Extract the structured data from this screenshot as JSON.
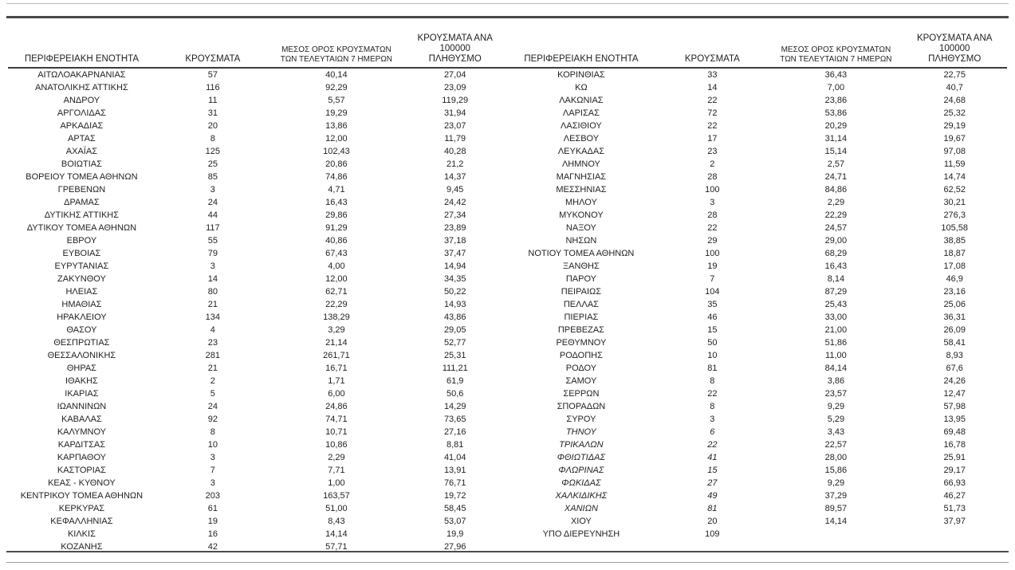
{
  "colors": {
    "background": "#ffffff",
    "text": "#1f1f1f",
    "rule_dark": "#4a4a4a",
    "rule_light": "#b8b8b8"
  },
  "columns": {
    "region": "ΠΕΡΙΦΕΡΕΙΑΚΗ ΕΝΟΤΗΤΑ",
    "cases": "ΚΡΟΥΣΜΑΤΑ",
    "avg7_line1": "ΜΕΣΟΣ ΟΡΟΣ ΚΡΟΥΣΜΑΤΩΝ",
    "avg7_line2": "ΤΩΝ ΤΕΛΕΥΤΑΙΩΝ 7 ΗΜΕΡΩΝ",
    "per100k_line1": "ΚΡΟΥΣΜΑΤΑ ΑΝΑ 100000",
    "per100k_line2": "ΠΛΗΘΥΣΜΟ"
  },
  "left_table": {
    "rows": [
      [
        "ΑΙΤΩΛΟΑΚΑΡΝΑΝΙΑΣ",
        "57",
        "40,14",
        "27,04"
      ],
      [
        "ΑΝΑΤΟΛΙΚΗΣ ΑΤΤΙΚΗΣ",
        "116",
        "92,29",
        "23,09"
      ],
      [
        "ΑΝΔΡΟΥ",
        "11",
        "5,57",
        "119,29"
      ],
      [
        "ΑΡΓΟΛΙΔΑΣ",
        "31",
        "19,29",
        "31,94"
      ],
      [
        "ΑΡΚΑΔΙΑΣ",
        "20",
        "13,86",
        "23,07"
      ],
      [
        "ΑΡΤΑΣ",
        "8",
        "12,00",
        "11,79"
      ],
      [
        "ΑΧΑΪΑΣ",
        "125",
        "102,43",
        "40,28"
      ],
      [
        "ΒΟΙΩΤΙΑΣ",
        "25",
        "20,86",
        "21,2"
      ],
      [
        "ΒΟΡΕΙΟΥ ΤΟΜΕΑ ΑΘΗΝΩΝ",
        "85",
        "74,86",
        "14,37"
      ],
      [
        "ΓΡΕΒΕΝΩΝ",
        "3",
        "4,71",
        "9,45"
      ],
      [
        "ΔΡΑΜΑΣ",
        "24",
        "16,43",
        "24,42"
      ],
      [
        "ΔΥΤΙΚΗΣ ΑΤΤΙΚΗΣ",
        "44",
        "29,86",
        "27,34"
      ],
      [
        "ΔΥΤΙΚΟΥ ΤΟΜΕΑ ΑΘΗΝΩΝ",
        "117",
        "91,29",
        "23,89"
      ],
      [
        "ΕΒΡΟΥ",
        "55",
        "40,86",
        "37,18"
      ],
      [
        "ΕΥΒΟΙΑΣ",
        "79",
        "67,43",
        "37,47"
      ],
      [
        "ΕΥΡΥΤΑΝΙΑΣ",
        "3",
        "4,00",
        "14,94"
      ],
      [
        "ΖΑΚΥΝΘΟΥ",
        "14",
        "12,00",
        "34,35"
      ],
      [
        "ΗΛΕΙΑΣ",
        "80",
        "62,71",
        "50,22"
      ],
      [
        "ΗΜΑΘΙΑΣ",
        "21",
        "22,29",
        "14,93"
      ],
      [
        "ΗΡΑΚΛΕΙΟΥ",
        "134",
        "138,29",
        "43,86"
      ],
      [
        "ΘΑΣΟΥ",
        "4",
        "3,29",
        "29,05"
      ],
      [
        "ΘΕΣΠΡΩΤΙΑΣ",
        "23",
        "21,14",
        "52,77"
      ],
      [
        "ΘΕΣΣΑΛΟΝΙΚΗΣ",
        "281",
        "261,71",
        "25,31"
      ],
      [
        "ΘΗΡΑΣ",
        "21",
        "16,71",
        "111,21"
      ],
      [
        "ΙΘΑΚΗΣ",
        "2",
        "1,71",
        "61,9"
      ],
      [
        "ΙΚΑΡΙΑΣ",
        "5",
        "6,00",
        "50,6"
      ],
      [
        "ΙΩΑΝΝΙΝΩΝ",
        "24",
        "24,86",
        "14,29"
      ],
      [
        "ΚΑΒΑΛΑΣ",
        "92",
        "74,71",
        "73,65"
      ],
      [
        "ΚΑΛΥΜΝΟΥ",
        "8",
        "10,71",
        "27,16"
      ],
      [
        "ΚΑΡΔΙΤΣΑΣ",
        "10",
        "10,86",
        "8,81"
      ],
      [
        "ΚΑΡΠΑΘΟΥ",
        "3",
        "2,29",
        "41,04"
      ],
      [
        "ΚΑΣΤΟΡΙΑΣ",
        "7",
        "7,71",
        "13,91"
      ],
      [
        "ΚΕΑΣ - ΚΥΘΝΟΥ",
        "3",
        "1,00",
        "76,71"
      ],
      [
        "ΚΕΝΤΡΙΚΟΥ ΤΟΜΕΑ ΑΘΗΝΩΝ",
        "203",
        "163,57",
        "19,72"
      ],
      [
        "ΚΕΡΚΥΡΑΣ",
        "61",
        "51,00",
        "58,45"
      ],
      [
        "ΚΕΦΑΛΛΗΝΙΑΣ",
        "19",
        "8,43",
        "53,07"
      ],
      [
        "ΚΙΛΚΙΣ",
        "16",
        "14,14",
        "19,9"
      ],
      [
        "ΚΟΖΑΝΗΣ",
        "42",
        "57,71",
        "27,96"
      ]
    ]
  },
  "right_table": {
    "rows": [
      [
        "ΚΟΡΙΝΘΙΑΣ",
        "33",
        "36,43",
        "22,75"
      ],
      [
        "ΚΩ",
        "14",
        "7,00",
        "40,7"
      ],
      [
        "ΛΑΚΩΝΙΑΣ",
        "22",
        "23,86",
        "24,68"
      ],
      [
        "ΛΑΡΙΣΑΣ",
        "72",
        "53,86",
        "25,32"
      ],
      [
        "ΛΑΣΙΘΙΟΥ",
        "22",
        "20,29",
        "29,19"
      ],
      [
        "ΛΕΣΒΟΥ",
        "17",
        "31,14",
        "19,67"
      ],
      [
        "ΛΕΥΚΑΔΑΣ",
        "23",
        "15,14",
        "97,08"
      ],
      [
        "ΛΗΜΝΟΥ",
        "2",
        "2,57",
        "11,59"
      ],
      [
        "ΜΑΓΝΗΣΙΑΣ",
        "28",
        "24,71",
        "14,74"
      ],
      [
        "ΜΕΣΣΗΝΙΑΣ",
        "100",
        "84,86",
        "62,52"
      ],
      [
        "ΜΗΛΟΥ",
        "3",
        "2,29",
        "30,21"
      ],
      [
        "ΜΥΚΟΝΟΥ",
        "28",
        "22,29",
        "276,3"
      ],
      [
        "ΝΑΞΟΥ",
        "22",
        "24,57",
        "105,58"
      ],
      [
        "ΝΗΣΩΝ",
        "29",
        "29,00",
        "38,85"
      ],
      [
        "ΝΟΤΙΟΥ ΤΟΜΕΑ ΑΘΗΝΩΝ",
        "100",
        "68,29",
        "18,87"
      ],
      [
        "ΞΑΝΘΗΣ",
        "19",
        "16,43",
        "17,08"
      ],
      [
        "ΠΑΡΟΥ",
        "7",
        "8,14",
        "46,9"
      ],
      [
        "ΠΕΙΡΑΙΩΣ",
        "104",
        "87,29",
        "23,16"
      ],
      [
        "ΠΕΛΛΑΣ",
        "35",
        "25,43",
        "25,06"
      ],
      [
        "ΠΙΕΡΙΑΣ",
        "46",
        "33,00",
        "36,31"
      ],
      [
        "ΠΡΕΒΕΖΑΣ",
        "15",
        "21,00",
        "26,09"
      ],
      [
        "ΡΕΘΥΜΝΟΥ",
        "50",
        "51,86",
        "58,41"
      ],
      [
        "ΡΟΔΟΠΗΣ",
        "10",
        "11,00",
        "8,93"
      ],
      [
        "ΡΟΔΟΥ",
        "81",
        "84,14",
        "67,6"
      ],
      [
        "ΣΑΜΟΥ",
        "8",
        "3,86",
        "24,26"
      ],
      [
        "ΣΕΡΡΩΝ",
        "22",
        "23,57",
        "12,47"
      ],
      [
        "ΣΠΟΡΑΔΩΝ",
        "8",
        "9,29",
        "57,98"
      ],
      [
        "ΣΥΡΟΥ",
        "3",
        "5,29",
        "13,95"
      ],
      [
        "ΤΗΝΟΥ",
        "6",
        "3,43",
        "69,48",
        true
      ],
      [
        "ΤΡΙΚΑΛΩΝ",
        "22",
        "22,57",
        "16,78",
        true
      ],
      [
        "ΦΘΙΩΤΙΔΑΣ",
        "41",
        "28,00",
        "25,91",
        true
      ],
      [
        "ΦΛΩΡΙΝΑΣ",
        "15",
        "15,86",
        "29,17",
        true
      ],
      [
        "ΦΩΚΙΔΑΣ",
        "27",
        "9,29",
        "66,93",
        true
      ],
      [
        "ΧΑΛΚΙΔΙΚΗΣ",
        "49",
        "37,29",
        "46,27",
        true
      ],
      [
        "ΧΑΝΙΩΝ",
        "81",
        "89,57",
        "51,73",
        true
      ],
      [
        "ΧΙΟΥ",
        "20",
        "14,14",
        "37,97"
      ],
      [
        "ΥΠΟ ΔΙΕΡΕΥΝΗΣΗ",
        "109",
        "",
        ""
      ]
    ]
  }
}
